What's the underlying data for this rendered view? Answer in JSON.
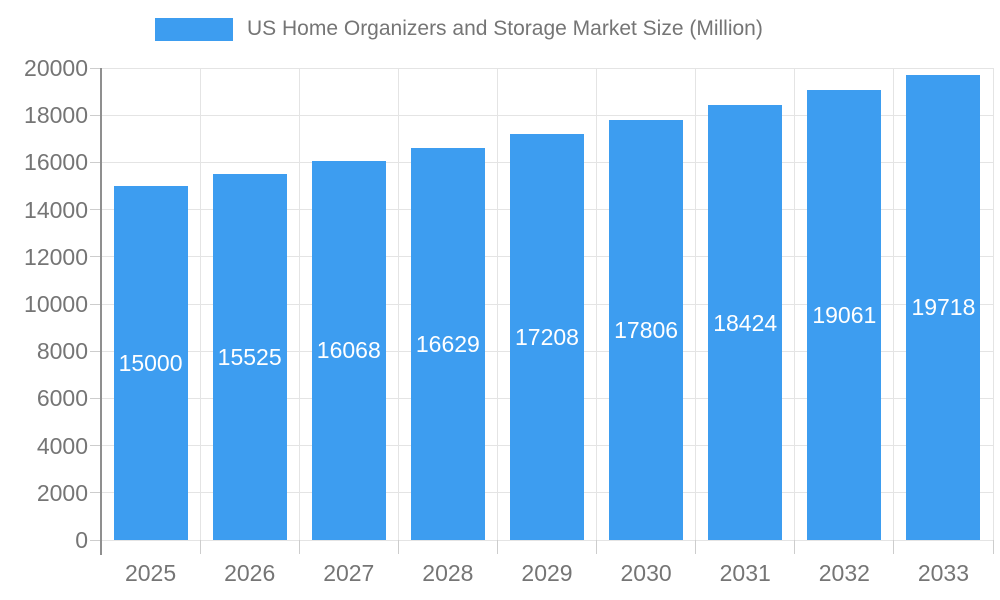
{
  "page": {
    "background": "#ffffff"
  },
  "legend": {
    "position": "top",
    "swatch_color": "#3d9df0"
  },
  "chart_data": {
    "type": "bar",
    "title": "US Home Organizers and Storage Market Size (Million)",
    "categories": [
      "2025",
      "2026",
      "2027",
      "2028",
      "2029",
      "2030",
      "2031",
      "2032",
      "2033"
    ],
    "values": [
      15000,
      15525,
      16068,
      16629,
      17208,
      17806,
      18424,
      19061,
      19718
    ],
    "xlabel": "",
    "ylabel": "",
    "ylim": [
      0,
      20000
    ],
    "ytick_step": 2000,
    "yticks": [
      0,
      2000,
      4000,
      6000,
      8000,
      10000,
      12000,
      14000,
      16000,
      18000,
      20000
    ],
    "grid": true,
    "legend_position": "top",
    "bar_labels_inside": true,
    "colors": {
      "bar": "#3d9df0",
      "bar_label": "#ffffff",
      "grid": "#e4e4e4",
      "axis": "#8f8f8f",
      "tick": "#cdcdcd",
      "text": "#757575"
    }
  }
}
